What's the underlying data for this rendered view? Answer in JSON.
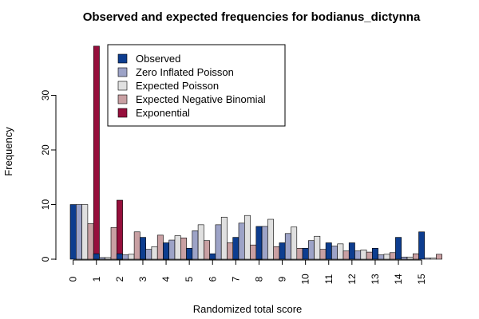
{
  "chart_data": {
    "type": "bar",
    "title": "Observed and expected frequencies for bodianus_dictynna",
    "xlabel": "Randomized total score",
    "ylabel": "Frequency",
    "ylim": [
      0,
      40
    ],
    "yticks": [
      0,
      10,
      20,
      30
    ],
    "categories": [
      "0",
      "1",
      "2",
      "3",
      "4",
      "5",
      "6",
      "7",
      "8",
      "9",
      "10",
      "11",
      "12",
      "13",
      "14",
      "15"
    ],
    "legend_position": "top-left",
    "series": [
      {
        "name": "Observed",
        "color": "#0d3d8f",
        "values": [
          10,
          1,
          1,
          4,
          3,
          2,
          1,
          4,
          6,
          3,
          2,
          3,
          3,
          2,
          4,
          5
        ]
      },
      {
        "name": "Zero Inflated Poisson",
        "color": "#9da3c7",
        "values": [
          10,
          0.3,
          0.8,
          1.8,
          3.5,
          5.2,
          6.3,
          6.6,
          6.0,
          4.7,
          3.4,
          2.4,
          1.5,
          0.8,
          0.4,
          0.2
        ]
      },
      {
        "name": "Expected Poisson",
        "color": "#e0e0e0",
        "values": [
          10,
          0.3,
          0.9,
          2.3,
          4.3,
          6.3,
          7.7,
          8.0,
          7.3,
          5.9,
          4.2,
          2.8,
          1.7,
          0.9,
          0.4,
          0.2
        ]
      },
      {
        "name": "Expected Negative Binomial",
        "color": "#c9a0a3",
        "values": [
          6.5,
          5.8,
          5.0,
          4.4,
          3.9,
          3.4,
          3.0,
          2.6,
          2.3,
          2.0,
          1.8,
          1.5,
          1.3,
          1.2,
          1.0,
          0.9
        ]
      },
      {
        "name": "Exponential",
        "color": "#960f3c",
        "values": [
          39,
          10.8,
          2.9,
          0.8,
          0.2,
          0.1,
          0.02,
          0.01,
          0,
          0,
          0,
          0,
          0,
          0,
          0,
          0
        ]
      }
    ]
  }
}
